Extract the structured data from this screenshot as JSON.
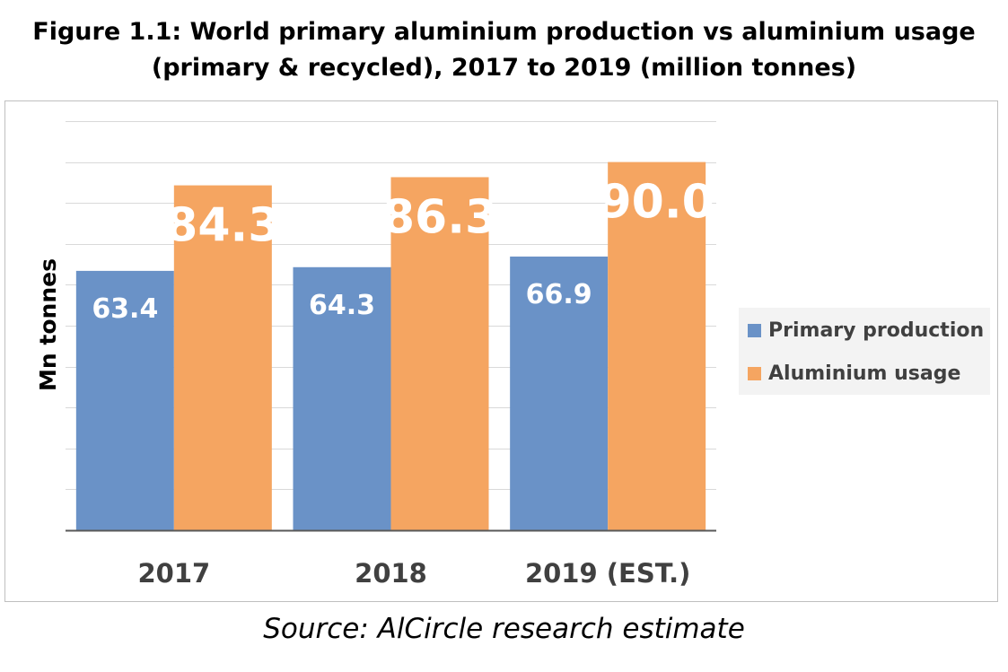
{
  "figure": {
    "title_line1": "Figure 1.1: World primary aluminium production vs aluminium usage",
    "title_line2": "(primary & recycled), 2017 to 2019 (million tonnes)",
    "source": "Source: AlCircle research estimate"
  },
  "chart_data": {
    "type": "bar",
    "title": "Figure 1.1: World primary aluminium production vs aluminium usage (primary & recycled), 2017 to 2019 (million tonnes)",
    "ylabel": "Mn tonnes",
    "xlabel": "",
    "categories": [
      "2017",
      "2018",
      "2019 (EST.)"
    ],
    "series": [
      {
        "name": "Primary production",
        "values": [
          63.4,
          64.3,
          66.9
        ],
        "color": "#6a92c7"
      },
      {
        "name": "Aluminium usage",
        "values": [
          84.3,
          86.3,
          90.0
        ],
        "color": "#f5a561"
      }
    ],
    "ylim": [
      0,
      100
    ],
    "y_tick_step": 10,
    "grid": true,
    "y_tick_labels_visible": false,
    "legend_placement": "right",
    "data_labels": [
      "63.4",
      "64.3",
      "66.9",
      "84.3",
      "86.3",
      "90.0"
    ]
  }
}
